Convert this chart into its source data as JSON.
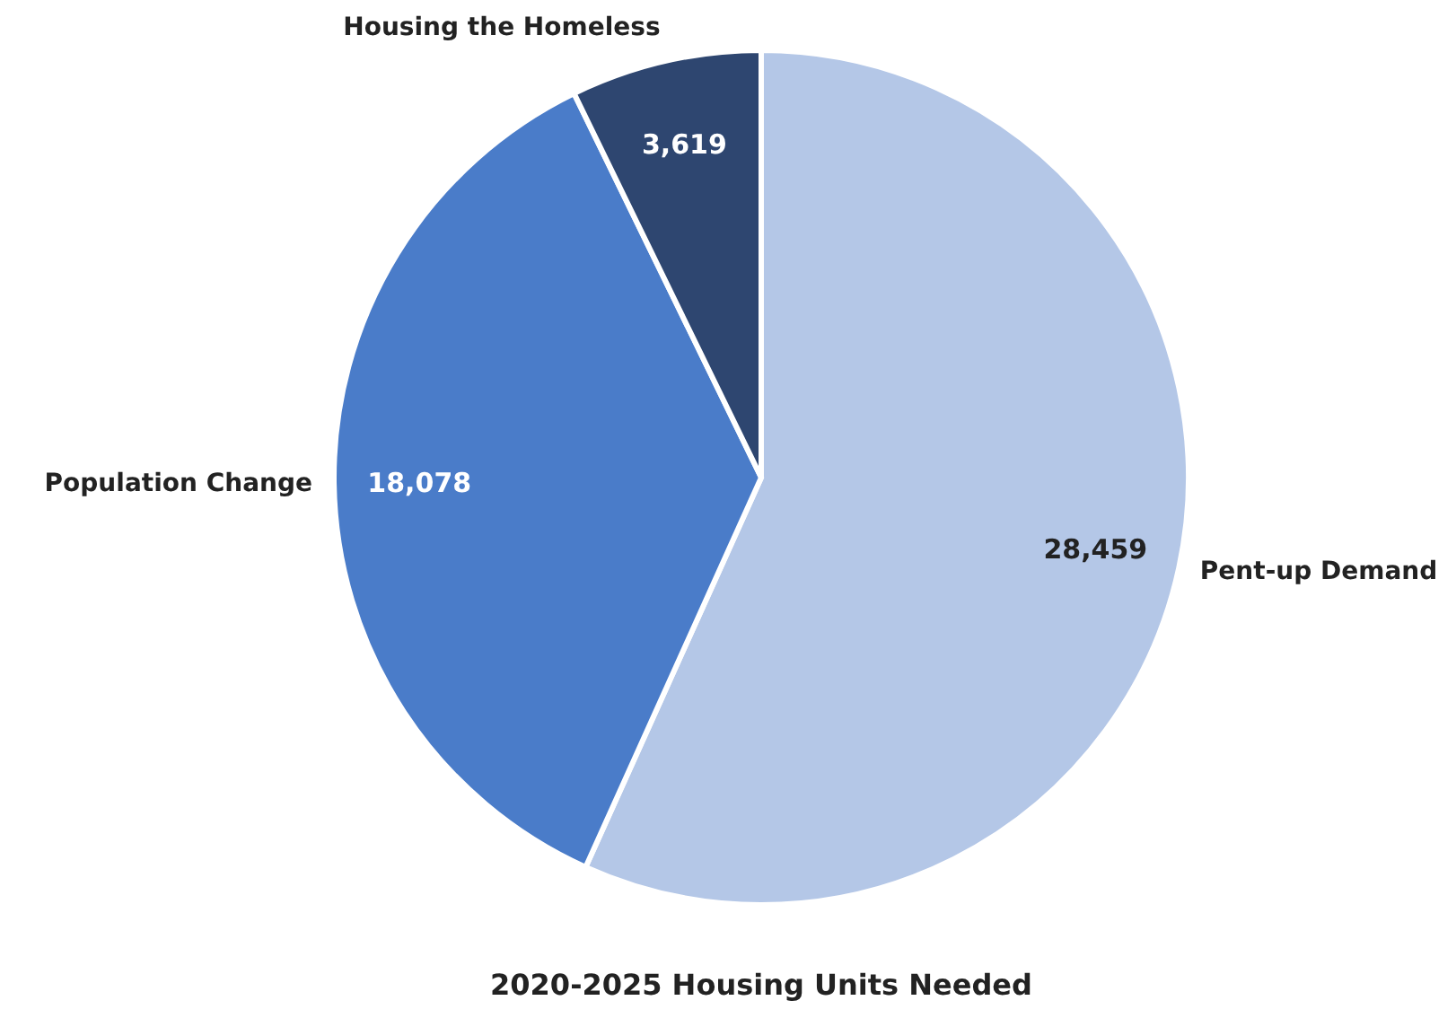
{
  "chart_data": {
    "type": "pie",
    "title": "2020-2025 Housing Units Needed",
    "categories": [
      "Pent-up Demand",
      "Population Change",
      "Housing the Homeless"
    ],
    "values": [
      28459,
      18078,
      3619
    ],
    "value_labels": [
      "28,459",
      "18,078",
      "3,619"
    ],
    "colors": [
      "#b4c7e7",
      "#4a7cc9",
      "#2e4670"
    ]
  }
}
